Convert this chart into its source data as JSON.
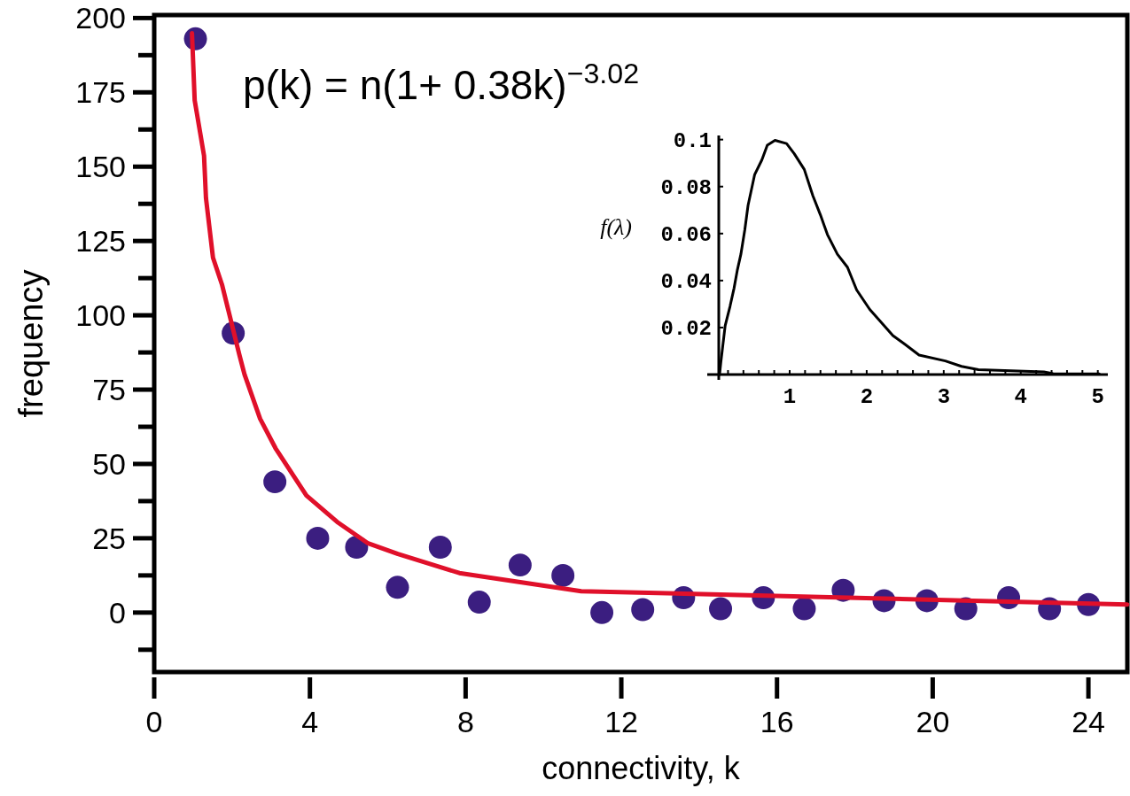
{
  "chart_data": [
    {
      "type": "scatter",
      "xlabel": "connectivity, k",
      "ylabel": "frequency",
      "xlim": [
        0,
        25
      ],
      "ylim": [
        -20,
        201
      ],
      "xticks": [
        0,
        4,
        8,
        12,
        16,
        20,
        24
      ],
      "yticks": [
        {
          "value": -12.5,
          "label": null
        },
        0,
        {
          "value": 12.5,
          "label": null
        },
        25,
        {
          "value": 37.5,
          "label": null
        },
        50,
        {
          "value": 62.5,
          "label": null
        },
        75,
        {
          "value": 87.5,
          "label": null
        },
        100,
        {
          "value": 112.5,
          "label": null
        },
        125,
        {
          "value": 137.5,
          "label": null
        },
        150,
        {
          "value": 162.5,
          "label": null
        },
        175,
        {
          "value": 187.5,
          "label": null
        },
        200
      ],
      "annotations": [
        "p(k) = n(1+ 0.38k)$^{−3.02}$"
      ],
      "series": [
        {
          "marker": "circle",
          "color": "#3b1e80",
          "x": [
            1.06,
            2.03,
            3.1,
            4.2,
            5.2,
            6.25,
            7.35,
            8.35,
            9.4,
            10.5,
            11.5,
            12.55,
            13.6,
            14.55,
            15.65,
            16.7,
            17.7,
            18.75,
            19.85,
            20.85,
            21.95,
            23.0,
            24.0
          ],
          "values": [
            193,
            94,
            44,
            25,
            22,
            8.5,
            22,
            3.5,
            16,
            12.5,
            0,
            1,
            5,
            1.3,
            5,
            1.3,
            7.5,
            4,
            4,
            1.3,
            5,
            1.3,
            2.7
          ]
        },
        {
          "type": "line",
          "color": "#e0102a",
          "x": [
            0.97,
            1.04,
            1.28,
            1.33,
            1.51,
            1.74,
            2.19,
            2.32,
            2.72,
            3.12,
            3.91,
            4.7,
            5.48,
            6.26,
            7.84,
            10.97,
            25
          ],
          "values": [
            194.9,
            172.3,
            153.7,
            139.4,
            119.4,
            110.4,
            86.6,
            80.1,
            65.2,
            55.2,
            39.4,
            30.5,
            23.4,
            19.7,
            13.3,
            7.2,
            2.7
          ]
        }
      ]
    },
    {
      "type": "line",
      "ylabel": "f(λ)",
      "xlim": [
        0.08,
        5.13
      ],
      "ylim": [
        0,
        0.101
      ],
      "xticks": [
        {
          "value": 0.2,
          "label": null
        },
        {
          "value": 0.4,
          "label": null
        },
        {
          "value": 0.6,
          "label": null
        },
        {
          "value": 0.8,
          "label": null
        },
        1,
        {
          "value": 1.2,
          "label": null
        },
        {
          "value": 1.4,
          "label": null
        },
        {
          "value": 1.6,
          "label": null
        },
        {
          "value": 1.8,
          "label": null
        },
        2,
        {
          "value": 2.2,
          "label": null
        },
        {
          "value": 2.4,
          "label": null
        },
        {
          "value": 2.6,
          "label": null
        },
        {
          "value": 2.8,
          "label": null
        },
        3,
        {
          "value": 3.2,
          "label": null
        },
        {
          "value": 3.4,
          "label": null
        },
        {
          "value": 3.6,
          "label": null
        },
        {
          "value": 3.8,
          "label": null
        },
        4,
        {
          "value": 4.2,
          "label": null
        },
        {
          "value": 4.4,
          "label": null
        },
        {
          "value": 4.6,
          "label": null
        },
        {
          "value": 4.8,
          "label": null
        },
        5
      ],
      "yticks": [
        0.02,
        0.04,
        0.06,
        0.08,
        0.1
      ],
      "series": [
        {
          "color": "#000000",
          "x": [
            0.09,
            0.108,
            0.163,
            0.226,
            0.278,
            0.32,
            0.367,
            0.418,
            0.46,
            0.545,
            0.64,
            0.71,
            0.81,
            0.96,
            1.06,
            1.19,
            1.3,
            1.4,
            1.49,
            1.62,
            1.75,
            1.87,
            2.04,
            2.17,
            2.34,
            2.51,
            2.68,
            3.02,
            3.23,
            3.45,
            4.3,
            4.42,
            5.02
          ],
          "values": [
            0,
            0.0055,
            0.0208,
            0.029,
            0.0367,
            0.0443,
            0.0512,
            0.0616,
            0.072,
            0.085,
            0.0914,
            0.0976,
            0.0997,
            0.0983,
            0.094,
            0.0873,
            0.0762,
            0.0679,
            0.0596,
            0.0512,
            0.0457,
            0.036,
            0.0277,
            0.0229,
            0.0166,
            0.0125,
            0.0083,
            0.0058,
            0.0035,
            0.0021,
            0.0011,
            0.0004,
            0.0003
          ]
        }
      ]
    }
  ]
}
